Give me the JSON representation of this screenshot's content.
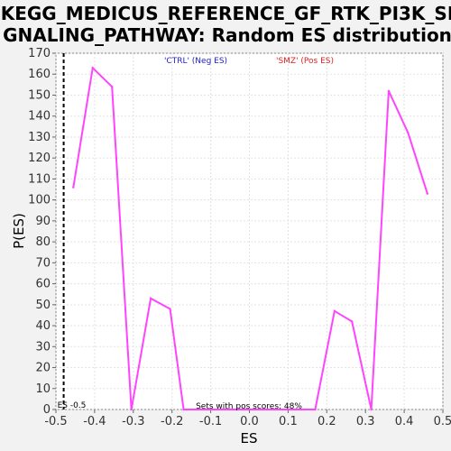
{
  "chart_data": {
    "type": "line",
    "title_line1": "KEGG_MEDICUS_REFERENCE_GF_RTK_PI3K_SI",
    "title_line2": "GNALING_PATHWAY: Random ES distribution",
    "xlabel": "ES",
    "ylabel": "P(ES)",
    "xlim": [
      -0.5,
      0.5
    ],
    "ylim": [
      0,
      170
    ],
    "xticks": [
      -0.5,
      -0.4,
      -0.3,
      -0.2,
      -0.1,
      0.0,
      0.1,
      0.2,
      0.3,
      0.4,
      0.5
    ],
    "xtick_labels": [
      "-0.5",
      "-0.4",
      "-0.3",
      "-0.2",
      "-0.1",
      "0.0",
      "0.1",
      "0.2",
      "0.3",
      "0.4",
      "0.5"
    ],
    "yticks": [
      0,
      10,
      20,
      30,
      40,
      50,
      60,
      70,
      80,
      90,
      100,
      110,
      120,
      130,
      140,
      150,
      160,
      170
    ],
    "grid": true,
    "series": [
      {
        "color": "#ff44ff",
        "x": [
          -0.455,
          -0.405,
          -0.355,
          -0.305,
          -0.255,
          -0.205,
          -0.17,
          0.17,
          0.22,
          0.265,
          0.315,
          0.36,
          0.41,
          0.46
        ],
        "y": [
          106,
          163,
          154,
          0,
          53,
          48,
          0,
          0,
          47,
          42,
          0,
          152,
          132,
          103
        ]
      }
    ],
    "legend_neg": "'CTRL' (Neg ES)",
    "legend_pos": "'SMZ' (Pos ES)",
    "legend_neg_color": "#2222cc",
    "legend_pos_color": "#dd2222",
    "actual_es_value": -0.48,
    "actual_es_label": "ES -0.5",
    "footer_text": "Sets with pos scores: 48%"
  }
}
